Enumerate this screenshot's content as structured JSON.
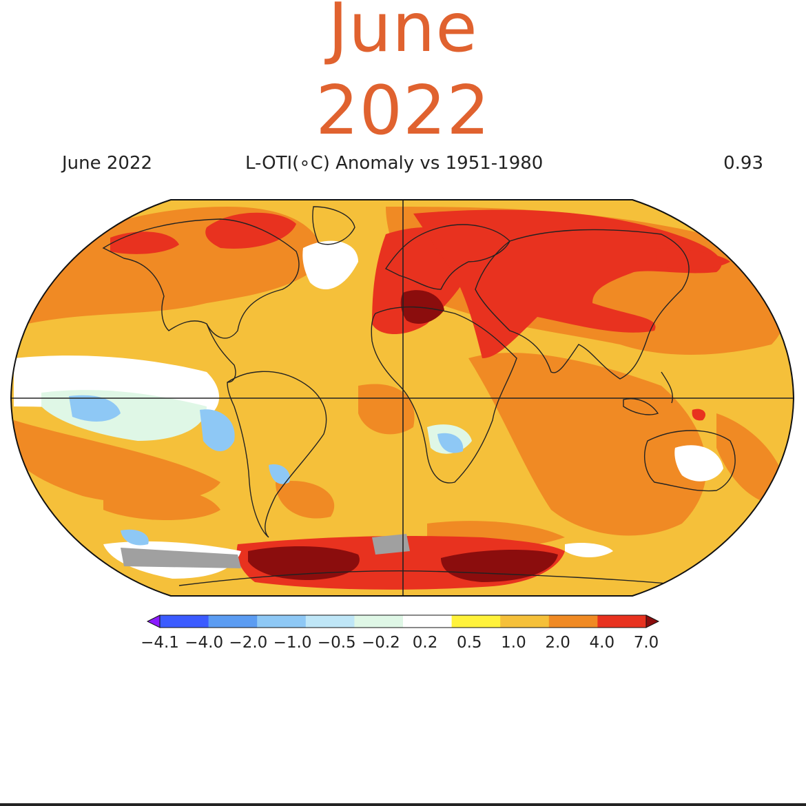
{
  "title": {
    "month": "June",
    "year": "2022"
  },
  "header": {
    "left": "June 2022",
    "center": "L-OTI(∘C) Anomaly vs 1951-1980",
    "right": "0.93"
  },
  "colorbar": {
    "tick_labels": [
      "−4.1",
      "−4.0",
      "−2.0",
      "−1.0",
      "−0.5",
      "−0.2",
      "0.2",
      "0.5",
      "1.0",
      "2.0",
      "4.0",
      "7.0"
    ],
    "colors": [
      "#8b1aff",
      "#3b5bff",
      "#5b9cf2",
      "#8ec8f5",
      "#bfe6f7",
      "#dff7e6",
      "#ffffff",
      "#fff23b",
      "#f5c03a",
      "#f08a24",
      "#e8321f",
      "#8b0d0d"
    ]
  },
  "map": {
    "projection": "robinson",
    "colors": {
      "ocean_base": "#f5c03a",
      "warm": "#f08a24",
      "hot": "#e8321f",
      "extreme": "#8b0d0d",
      "neutral": "#ffffff",
      "cool_light": "#dff7e6",
      "cool": "#8ec8f5",
      "no_data": "#a0a0a0",
      "coastline": "#222222"
    }
  }
}
